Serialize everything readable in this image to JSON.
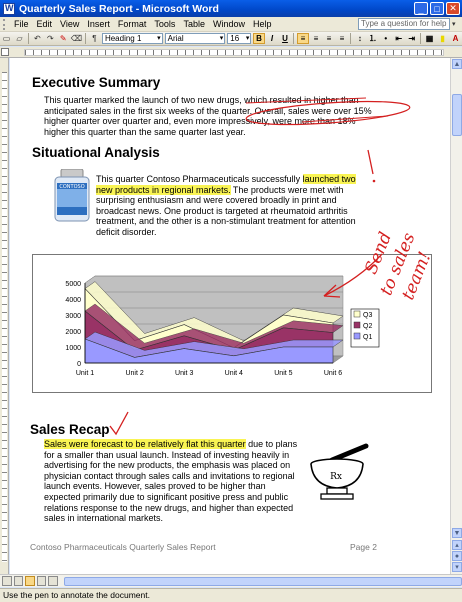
{
  "window": {
    "title": "Quarterly Sales Report - Microsoft Word"
  },
  "menu": {
    "items": [
      "File",
      "Edit",
      "View",
      "Insert",
      "Format",
      "Tools",
      "Table",
      "Window",
      "Help"
    ],
    "ask_placeholder": "Type a question for help"
  },
  "toolbar": {
    "style": "Heading 1",
    "font": "Arial",
    "size": "16",
    "bold": "B",
    "italic": "I",
    "underline": "U"
  },
  "document": {
    "exec_summary": {
      "heading": "Executive Summary",
      "lines": [
        "This quarter marked the launch of two new drugs, which resulted in higher than",
        "anticipated sales in the first six weeks of the quarter.  Overall, sales were over 15%",
        "higher quarter over quarter and, even more impressively, were more than 18%",
        "higher this quarter than the same quarter last year."
      ]
    },
    "situational": {
      "heading": "Situational Analysis",
      "text_before": "This quarter Contoso Pharmaceuticals successfully ",
      "highlight": "launched two new products in regional markets.",
      "text_after": " The products were met with surprising enthusiasm and were covered broadly in print and broadcast news.  One product is targeted at rheumatoid arthritis treatment, and the other is a non-stimulant treatment for attention deficit disorder.",
      "bottle_brand": "CONTOSO"
    },
    "annotation": {
      "note": [
        "Send",
        "to sales",
        "team!"
      ],
      "mark": "!"
    },
    "sales_recap": {
      "heading": "Sales Recap",
      "highlight": "Sales were forecast to be relatively flat this quarter",
      "text_after": " due to plans for a smaller than usual launch.  Instead of investing heavily in advertising for the new products, the emphasis was placed on physician contact through sales calls and invitations to regional launch events.  However, sales proved to be higher than expected primarily due to significant positive press and public relations response to the new drugs, and higher than expected sales in international markets.",
      "rx_label": "Rx"
    },
    "footer": {
      "left": "Contoso Pharmaceuticals Quarterly Sales Report",
      "right": "Page 2"
    }
  },
  "status": {
    "message": "Use the pen to annotate the document."
  },
  "chart_data": {
    "type": "area",
    "categories": [
      "Unit 1",
      "Unit 2",
      "Unit 3",
      "Unit 4",
      "Unit 5",
      "Unit 6"
    ],
    "series": [
      {
        "name": "Q1",
        "values": [
          1500,
          350,
          900,
          450,
          1000,
          1000
        ],
        "color": "#9999ff"
      },
      {
        "name": "Q2",
        "values": [
          1750,
          450,
          800,
          350,
          1200,
          900
        ],
        "color": "#993366"
      },
      {
        "name": "Q3",
        "values": [
          1400,
          600,
          700,
          150,
          800,
          600
        ],
        "color": "#ffffcc"
      }
    ],
    "ylim": [
      0,
      5000
    ],
    "yticks": [
      "0",
      "1000",
      "2000",
      "3000",
      "4000",
      "5000"
    ],
    "legend": "right"
  }
}
